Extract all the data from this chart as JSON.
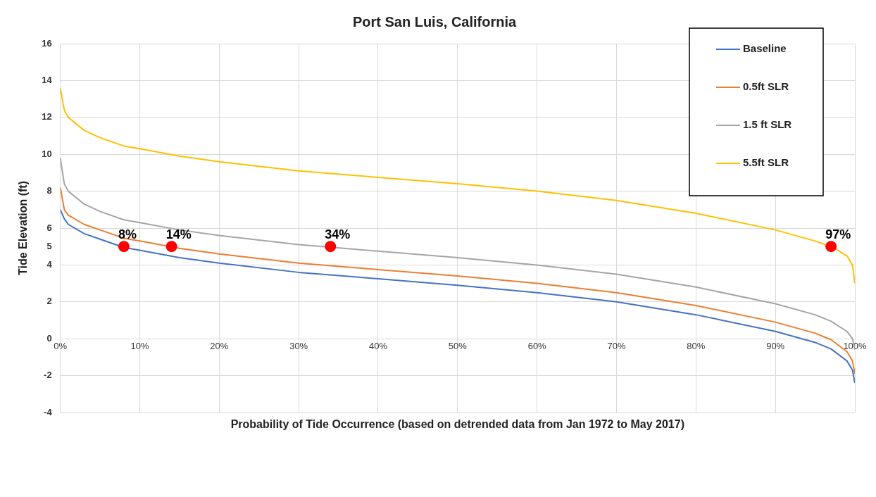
{
  "chart_data": {
    "type": "line",
    "title": "Port San Luis, California",
    "xlabel": "Probability of Tide Occurrence (based on detrended data from Jan 1972 to May 2017)",
    "ylabel": "Tide Elevation (ft)",
    "xlim": [
      0,
      100
    ],
    "xticks": [
      {
        "value": 0,
        "label": "0%"
      },
      {
        "value": 10,
        "label": "10%"
      },
      {
        "value": 20,
        "label": "20%"
      },
      {
        "value": 30,
        "label": "30%"
      },
      {
        "value": 40,
        "label": "40%"
      },
      {
        "value": 50,
        "label": "50%"
      },
      {
        "value": 60,
        "label": "60%"
      },
      {
        "value": 70,
        "label": "70%"
      },
      {
        "value": 80,
        "label": "80%"
      },
      {
        "value": 90,
        "label": "90%"
      },
      {
        "value": 100,
        "label": "100%"
      }
    ],
    "ylim": [
      -4,
      16
    ],
    "yticks": [
      -4,
      -2,
      0,
      2,
      4,
      5,
      6,
      8,
      10,
      12,
      14,
      16
    ],
    "grid": true,
    "legend": "top right",
    "marker": "none",
    "line_style": "solid",
    "x": [
      0,
      0.5,
      1,
      3,
      5,
      8,
      10,
      15,
      20,
      30,
      40,
      50,
      60,
      70,
      80,
      90,
      95,
      97,
      99,
      99.7,
      100
    ],
    "series": [
      {
        "name": "Baseline",
        "color": "#4472c4",
        "values": [
          7.0,
          6.5,
          6.2,
          5.7,
          5.4,
          4.95,
          4.8,
          4.4,
          4.1,
          3.6,
          3.25,
          2.9,
          2.5,
          2.0,
          1.3,
          0.4,
          -0.2,
          -0.55,
          -1.2,
          -1.7,
          -2.4
        ]
      },
      {
        "name": "0.5ft SLR",
        "color": "#ed7d31",
        "values": [
          8.2,
          7.0,
          6.7,
          6.2,
          5.9,
          5.45,
          5.3,
          4.9,
          4.6,
          4.1,
          3.75,
          3.4,
          3.0,
          2.5,
          1.8,
          0.9,
          0.3,
          -0.05,
          -0.7,
          -1.2,
          -1.9
        ]
      },
      {
        "name": "1.5 ft SLR",
        "color": "#a5a5a5",
        "values": [
          9.8,
          8.4,
          8.0,
          7.3,
          6.9,
          6.45,
          6.3,
          5.9,
          5.6,
          5.1,
          4.75,
          4.4,
          4.0,
          3.5,
          2.8,
          1.9,
          1.3,
          0.95,
          0.4,
          0.0,
          -0.6
        ]
      },
      {
        "name": "5.5ft SLR",
        "color": "#ffc000",
        "values": [
          13.6,
          12.4,
          12.0,
          11.3,
          10.9,
          10.45,
          10.3,
          9.9,
          9.6,
          9.1,
          8.75,
          8.4,
          8.0,
          7.5,
          6.8,
          5.9,
          5.3,
          5.0,
          4.5,
          4.0,
          3.0
        ]
      },
      {
        "type": "scatter",
        "color": "#ff0000",
        "x": [
          8,
          14,
          34,
          97
        ],
        "values": [
          5,
          5,
          5,
          5
        ],
        "marker": "circle"
      }
    ],
    "annotations": [
      {
        "text": "8%",
        "x": 8,
        "y": 5
      },
      {
        "text": "14%",
        "x": 14,
        "y": 5
      },
      {
        "text": "34%",
        "x": 34,
        "y": 5
      },
      {
        "text": "97%",
        "x": 97,
        "y": 5
      }
    ]
  }
}
